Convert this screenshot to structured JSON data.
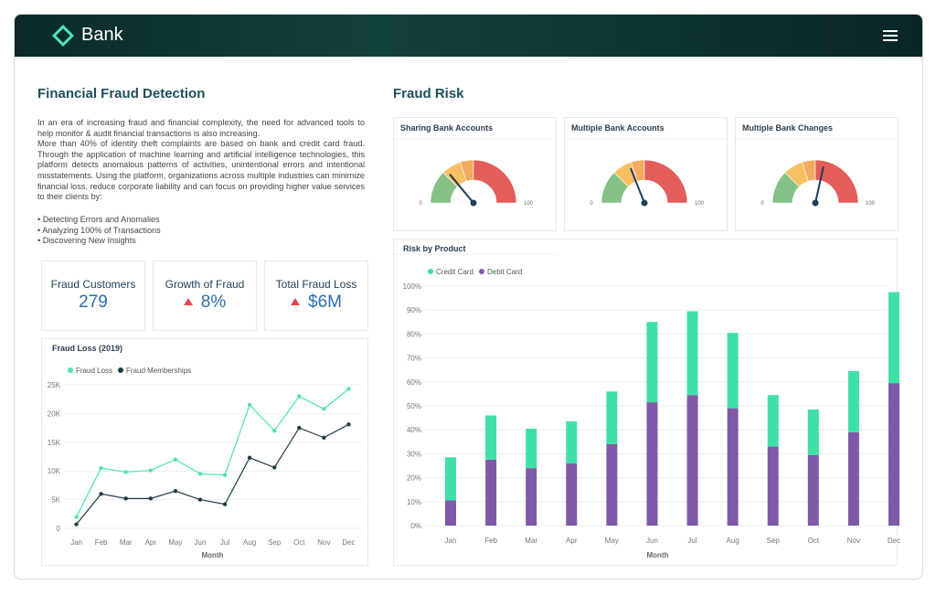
{
  "header": {
    "brand": "Bank"
  },
  "intro": {
    "title": "Financial Fraud Detection",
    "paragraphs": [
      "In an era of increasing fraud and financial complexity, the need for advanced tools to help monitor & audit financial transactions is also increasing.",
      "More than 40% of identity theft complaints are based on bank and credit card fraud. Through the application of machine learning and artificial intelligence technologies, this platform detects anomalous patterns of activities, unintentional errors and intentional misstatements. Using the platform, organizations across multiple industries can minimize financial loss, reduce corporate liability and can focus on providing higher value services to their clients by:"
    ],
    "bullets": [
      "Detecting Errors and Anomalies",
      "Analyzing 100% of Transactions",
      "Discovering New Insights"
    ]
  },
  "kpis": [
    {
      "label": "Fraud Customers",
      "value": "279"
    },
    {
      "label": "Growth of Fraud",
      "value": "8%",
      "trend": "up"
    },
    {
      "label": "Total Fraud Loss",
      "value": "$6M",
      "trend": "up"
    }
  ],
  "fraud_loss": {
    "type": "line",
    "title": "Fraud Loss (2019)",
    "x_label": "Month",
    "categories": [
      "Jan",
      "Feb",
      "Mar",
      "Apr",
      "May",
      "Jun",
      "Jul",
      "Aug",
      "Sep",
      "Oct",
      "Nov",
      "Dec"
    ],
    "series": [
      {
        "name": "Fraud Loss",
        "color": "#4de3b4",
        "values": [
          2000,
          10500,
          9800,
          10100,
          12000,
          9500,
          9300,
          21500,
          17000,
          23000,
          20800,
          24300
        ]
      },
      {
        "name": "Fraud Memberships",
        "color": "#1e3d45",
        "values": [
          700,
          6000,
          5200,
          5200,
          6500,
          5000,
          4200,
          12300,
          10600,
          17500,
          15800,
          18100
        ]
      }
    ],
    "ylim": [
      0,
      25000
    ],
    "yticks": [
      0,
      {
        "value": 5000,
        "label": "5K"
      },
      {
        "value": 10000,
        "label": "10K"
      },
      {
        "value": 15000,
        "label": "15K"
      },
      {
        "value": 20000,
        "label": "20K"
      },
      {
        "value": 25000,
        "label": "25K"
      }
    ],
    "grid": true
  },
  "risk": {
    "title": "Fraud Risk",
    "bands": [
      {
        "from": 0,
        "to": 25,
        "color": "#84c184"
      },
      {
        "from": 25,
        "to": 40,
        "color": "#f8c063"
      },
      {
        "from": 40,
        "to": 50,
        "color": "#f4ab5e"
      },
      {
        "from": 50,
        "to": 100,
        "color": "#e35d5b"
      }
    ],
    "gauges": [
      {
        "type": "gauge",
        "title": "Sharing Bank Accounts",
        "value": 28,
        "min": 0,
        "max": 100
      },
      {
        "type": "gauge",
        "title": "Multiple Bank Accounts",
        "value": 38,
        "min": 0,
        "max": 100
      },
      {
        "type": "gauge",
        "title": "Multiple Bank Changes",
        "value": 57,
        "min": 0,
        "max": 100
      }
    ]
  },
  "risk_by_product": {
    "type": "bar",
    "stacked": true,
    "title": "Risk by Product",
    "x_label": "Month",
    "categories": [
      "Jan",
      "Feb",
      "Mar",
      "Apr",
      "May",
      "Jun",
      "Jul",
      "Aug",
      "Sep",
      "Oct",
      "Nov",
      "Dec"
    ],
    "series": [
      {
        "name": "Credit Card",
        "color": "#3fe0a8",
        "values": [
          18,
          18.5,
          16.5,
          17.5,
          22,
          33.5,
          35,
          31.5,
          21.5,
          19,
          25.5,
          38
        ]
      },
      {
        "name": "Debit Card",
        "color": "#7f5aa6",
        "values": [
          10.5,
          27.5,
          24,
          26,
          34,
          51.5,
          54.5,
          49,
          33,
          29.5,
          39,
          59.5
        ]
      }
    ],
    "ylim": [
      0,
      100
    ],
    "yticks": [
      {
        "value": 0,
        "label": "0%"
      },
      {
        "value": 10,
        "label": "10%"
      },
      {
        "value": 20,
        "label": "20%"
      },
      {
        "value": 30,
        "label": "30%"
      },
      {
        "value": 40,
        "label": "40%"
      },
      {
        "value": 50,
        "label": "50%"
      },
      {
        "value": 60,
        "label": "60%"
      },
      {
        "value": 70,
        "label": "70%"
      },
      {
        "value": 80,
        "label": "80%"
      },
      {
        "value": 90,
        "label": "90%"
      },
      {
        "value": 100,
        "label": "100%"
      }
    ],
    "grid": true
  }
}
